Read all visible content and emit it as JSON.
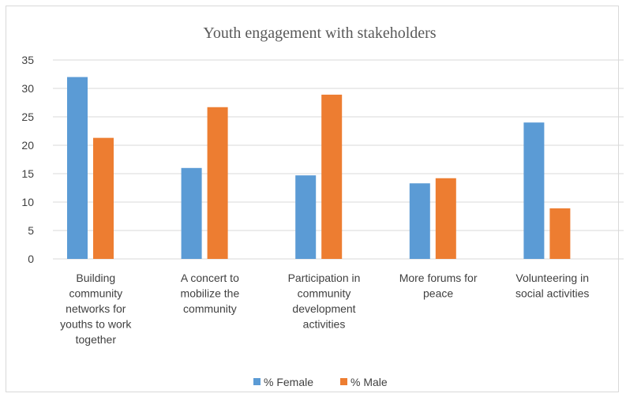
{
  "chart_data": {
    "type": "bar",
    "title": "Youth engagement with stakeholders",
    "xlabel": "",
    "ylabel": "",
    "ylim": [
      0,
      35
    ],
    "yticks": [
      0,
      5,
      10,
      15,
      20,
      25,
      30,
      35
    ],
    "grid": true,
    "legend_position": "bottom",
    "categories": [
      "Building community networks for youths to work together",
      "A concert to mobilize the community",
      "Participation in community development activities",
      "More forums for peace",
      "Volunteering in social activities"
    ],
    "category_label_lines": [
      [
        "Building",
        "community",
        "networks for",
        "youths to work",
        "together"
      ],
      [
        "A concert to",
        "mobilize the",
        "community"
      ],
      [
        "Participation in",
        "community",
        "development",
        "activities"
      ],
      [
        "More forums for",
        "peace"
      ],
      [
        "Volunteering in",
        "social activities"
      ]
    ],
    "series": [
      {
        "name": "% Female",
        "color": "#5b9bd5",
        "values": [
          32,
          16,
          14.7,
          13.3,
          24
        ]
      },
      {
        "name": "% Male",
        "color": "#ed7d31",
        "values": [
          21.3,
          26.7,
          28.9,
          14.2,
          8.9
        ]
      }
    ]
  }
}
